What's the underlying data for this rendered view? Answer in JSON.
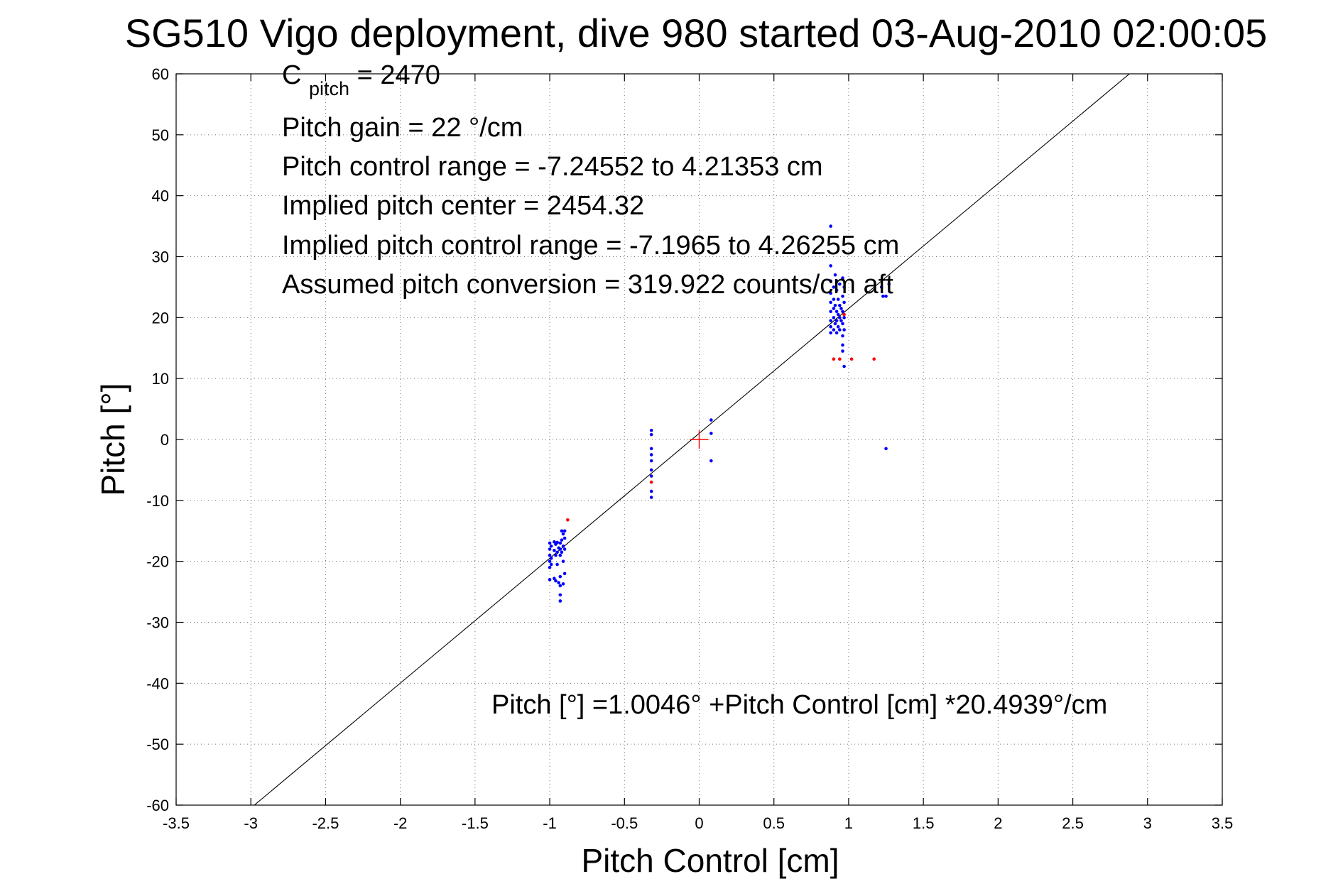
{
  "chart_data": {
    "type": "scatter",
    "title": "SG510 Vigo deployment, dive 980 started 03-Aug-2010 02:00:05",
    "xlabel": "Pitch Control [cm]",
    "ylabel": "Pitch [°]",
    "xlim": [
      -3.5,
      3.5
    ],
    "ylim": [
      -60,
      60
    ],
    "xticks": [
      -3.5,
      -3,
      -2.5,
      -2,
      -1.5,
      -1,
      -0.5,
      0,
      0.5,
      1,
      1.5,
      2,
      2.5,
      3,
      3.5
    ],
    "yticks": [
      -60,
      -50,
      -40,
      -30,
      -20,
      -10,
      0,
      10,
      20,
      30,
      40,
      50,
      60
    ],
    "xtick_labels": [
      "-3.5",
      "-3",
      "-2.5",
      "-2",
      "-1.5",
      "-1",
      "-0.5",
      "0",
      "0.5",
      "1",
      "1.5",
      "2",
      "2.5",
      "3",
      "3.5"
    ],
    "ytick_labels": [
      "-60",
      "-50",
      "-40",
      "-30",
      "-20",
      "-10",
      "0",
      "10",
      "20",
      "30",
      "40",
      "50",
      "60"
    ],
    "grid": true,
    "annotations": {
      "c_pitch_main": "C",
      "c_pitch_sub": "pitch",
      "c_pitch_value": " = 2470",
      "lines": [
        "Pitch gain = 22 °/cm",
        "Pitch control range = -7.24552 to 4.21353 cm",
        "Implied pitch center = 2454.32",
        "Implied pitch control range = -7.1965 to 4.26255 cm",
        "Assumed pitch conversion = 319.922 counts/cm aft"
      ],
      "fit_equation": "Pitch [°] =1.0046° +Pitch Control [cm] *20.4939°/cm"
    },
    "fit_line": {
      "intercept": 1.0046,
      "slope": 20.4939,
      "color": "#000000"
    },
    "center_marker": {
      "x": 0,
      "y": 0,
      "color": "#ff0000"
    },
    "series": [
      {
        "color": "#0000ff",
        "points": [
          [
            -1.0,
            -17.0
          ],
          [
            -1.0,
            -18.0
          ],
          [
            -1.0,
            -19.0
          ],
          [
            -1.0,
            -20.0
          ],
          [
            -1.0,
            -21.0
          ],
          [
            -1.0,
            -23.0
          ],
          [
            -0.99,
            -17.5
          ],
          [
            -0.99,
            -19.5
          ],
          [
            -0.99,
            -20.5
          ],
          [
            -0.97,
            -16.8
          ],
          [
            -0.97,
            -18.2
          ],
          [
            -0.97,
            -22.8
          ],
          [
            -0.96,
            -17.2
          ],
          [
            -0.96,
            -19.0
          ],
          [
            -0.96,
            -23.2
          ],
          [
            -0.95,
            -16.9
          ],
          [
            -0.95,
            -18.5
          ],
          [
            -0.95,
            -20.5
          ],
          [
            -0.94,
            -17.8
          ],
          [
            -0.94,
            -23.5
          ],
          [
            -0.93,
            -17.0
          ],
          [
            -0.93,
            -18.0
          ],
          [
            -0.93,
            -19.0
          ],
          [
            -0.93,
            -22.5
          ],
          [
            -0.93,
            -24.0
          ],
          [
            -0.93,
            -25.5
          ],
          [
            -0.93,
            -26.5
          ],
          [
            -0.92,
            -15.0
          ],
          [
            -0.92,
            -16.5
          ],
          [
            -0.92,
            -18.5
          ],
          [
            -0.91,
            -15.5
          ],
          [
            -0.91,
            -17.5
          ],
          [
            -0.91,
            -20.0
          ],
          [
            -0.91,
            -23.7
          ],
          [
            -0.9,
            -15.0
          ],
          [
            -0.9,
            -16.2
          ],
          [
            -0.9,
            -18.0
          ],
          [
            -0.9,
            -22.0
          ],
          [
            -0.32,
            1.5
          ],
          [
            -0.32,
            0.8
          ],
          [
            -0.32,
            -1.5
          ],
          [
            -0.32,
            -2.5
          ],
          [
            -0.32,
            -3.5
          ],
          [
            -0.32,
            -5.0
          ],
          [
            -0.32,
            -6.0
          ],
          [
            -0.32,
            -8.5
          ],
          [
            -0.32,
            -9.5
          ],
          [
            0.08,
            3.2
          ],
          [
            0.08,
            1.0
          ],
          [
            0.08,
            -3.5
          ],
          [
            0.88,
            35.0
          ],
          [
            0.88,
            28.5
          ],
          [
            0.88,
            26.0
          ],
          [
            0.88,
            24.0
          ],
          [
            0.88,
            22.5
          ],
          [
            0.88,
            21.0
          ],
          [
            0.88,
            19.5
          ],
          [
            0.88,
            18.5
          ],
          [
            0.88,
            17.5
          ],
          [
            0.9,
            25.0
          ],
          [
            0.9,
            23.0
          ],
          [
            0.9,
            21.5
          ],
          [
            0.9,
            20.0
          ],
          [
            0.9,
            18.0
          ],
          [
            0.91,
            27.0
          ],
          [
            0.91,
            22.0
          ],
          [
            0.91,
            19.0
          ],
          [
            0.92,
            26.0
          ],
          [
            0.92,
            24.5
          ],
          [
            0.92,
            21.0
          ],
          [
            0.92,
            19.5
          ],
          [
            0.92,
            17.5
          ],
          [
            0.93,
            23.0
          ],
          [
            0.93,
            20.5
          ],
          [
            0.93,
            18.5
          ],
          [
            0.94,
            25.5
          ],
          [
            0.94,
            22.0
          ],
          [
            0.94,
            20.0
          ],
          [
            0.94,
            18.0
          ],
          [
            0.95,
            21.5
          ],
          [
            0.95,
            19.5
          ],
          [
            0.96,
            26.5
          ],
          [
            0.96,
            23.5
          ],
          [
            0.96,
            21.0
          ],
          [
            0.96,
            19.0
          ],
          [
            0.96,
            17.0
          ],
          [
            0.96,
            15.5
          ],
          [
            0.96,
            14.5
          ],
          [
            0.97,
            25.0
          ],
          [
            0.97,
            22.5
          ],
          [
            0.97,
            20.0
          ],
          [
            0.97,
            18.0
          ],
          [
            0.97,
            12.0
          ],
          [
            1.22,
            25.0
          ],
          [
            1.23,
            23.5
          ],
          [
            1.25,
            23.5
          ],
          [
            1.27,
            25.5
          ],
          [
            1.25,
            -1.5
          ]
        ]
      },
      {
        "color": "#ff0000",
        "points": [
          [
            -0.88,
            -13.2
          ],
          [
            -0.32,
            -7.0
          ],
          [
            0.9,
            13.2
          ],
          [
            0.94,
            13.2
          ],
          [
            1.02,
            13.2
          ],
          [
            1.17,
            13.2
          ],
          [
            0.97,
            20.5
          ]
        ]
      }
    ]
  }
}
